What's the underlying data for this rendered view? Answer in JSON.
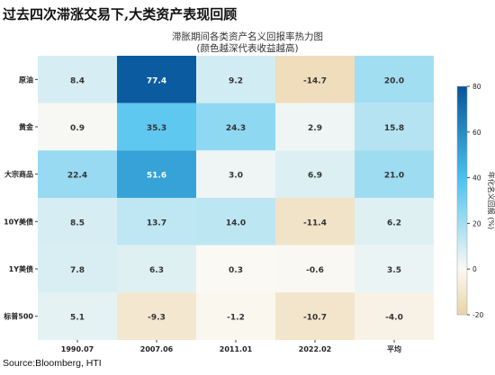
{
  "header": {
    "title": "过去四次滞涨交易下,大类资产表现回顾"
  },
  "source": "Source:Bloomberg, HTI",
  "chart_data": {
    "type": "heatmap",
    "title": "滞胀期间各类资产名义回报率热力图",
    "subtitle": "(颜色越深代表收益越高)",
    "rows": [
      "原油",
      "黄金",
      "大宗商品",
      "10Y美债",
      "1Y美债",
      "标普500"
    ],
    "columns": [
      "1990.07",
      "2007.06",
      "2011.01",
      "2022.02",
      "平均"
    ],
    "values": [
      [
        8.4,
        77.4,
        9.2,
        -14.7,
        20.0
      ],
      [
        0.9,
        35.3,
        24.3,
        2.9,
        15.8
      ],
      [
        22.4,
        51.6,
        3.0,
        6.9,
        21.0
      ],
      [
        8.5,
        13.7,
        14.0,
        -11.4,
        6.2
      ],
      [
        7.8,
        6.3,
        0.3,
        -0.6,
        3.5
      ],
      [
        5.1,
        -9.3,
        -1.2,
        -10.7,
        -4.0
      ]
    ],
    "colorbar": {
      "label": "年化名义回报 (%)",
      "range": [
        -20,
        80
      ],
      "ticks": [
        -20,
        0,
        20,
        40,
        60,
        80
      ]
    },
    "colors": {
      "negative_end": "#ead3a7",
      "zero": "#fbf9f4",
      "mid_positive": "#49c2f0",
      "positive_end": "#07549a"
    }
  }
}
